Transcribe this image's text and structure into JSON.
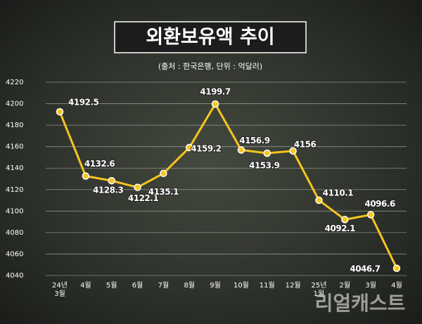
{
  "title": "외환보유액 추이",
  "subtitle": "(출처 : 한국은행, 단위 : 억달러)",
  "watermark": "리얼캐스트",
  "chart_data": {
    "type": "line",
    "categories": [
      "24년 3월",
      "4월",
      "5월",
      "6월",
      "7월",
      "8월",
      "9월",
      "10월",
      "11월",
      "12월",
      "25년 1월",
      "2월",
      "3월",
      "4월"
    ],
    "values": [
      4192.5,
      4132.6,
      4128.3,
      4122.1,
      4135.1,
      4159.2,
      4199.7,
      4156.9,
      4153.9,
      4156,
      4110.1,
      4092.1,
      4096.6,
      4046.7
    ],
    "color": "#f7c51e",
    "ylim": [
      4040,
      4220
    ],
    "yticks": [
      4040,
      4060,
      4080,
      4100,
      4120,
      4140,
      4160,
      4180,
      4200,
      4220
    ],
    "grid": true
  }
}
